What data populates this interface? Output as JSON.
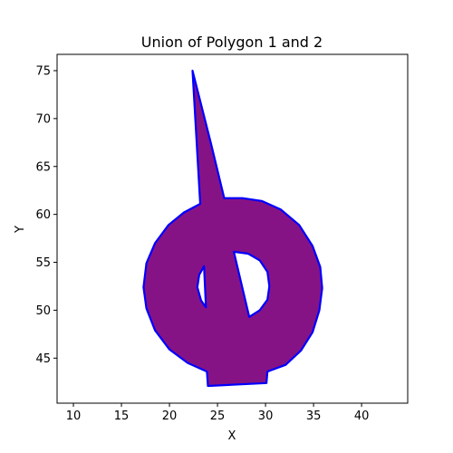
{
  "chart_data": {
    "type": "area",
    "title": "Union of Polygon 1 and 2",
    "xlabel": "X",
    "ylabel": "Y",
    "xlim": [
      8.3,
      44.8
    ],
    "ylim": [
      40.3,
      76.7
    ],
    "xticks": [
      10,
      15,
      20,
      25,
      30,
      35,
      40
    ],
    "yticks": [
      45,
      50,
      55,
      60,
      65,
      70,
      75
    ],
    "grid": false,
    "fill_color": "#861386",
    "edge_color": "#0000ff",
    "outer_boundary": [
      [
        22.4,
        75.0
      ],
      [
        24.3,
        67.5
      ],
      [
        25.7,
        61.7
      ],
      [
        27.6,
        61.7
      ],
      [
        29.6,
        61.4
      ],
      [
        31.6,
        60.5
      ],
      [
        33.5,
        58.9
      ],
      [
        34.9,
        56.7
      ],
      [
        35.7,
        54.5
      ],
      [
        35.9,
        52.3
      ],
      [
        35.6,
        50.0
      ],
      [
        34.9,
        47.7
      ],
      [
        33.7,
        45.8
      ],
      [
        32.1,
        44.3
      ],
      [
        30.2,
        43.6
      ],
      [
        30.1,
        42.4
      ],
      [
        24.0,
        42.1
      ],
      [
        23.9,
        43.6
      ],
      [
        21.9,
        44.5
      ],
      [
        20.0,
        45.9
      ],
      [
        18.5,
        47.9
      ],
      [
        17.6,
        50.2
      ],
      [
        17.3,
        52.4
      ],
      [
        17.6,
        54.9
      ],
      [
        18.5,
        57.0
      ],
      [
        19.9,
        58.9
      ],
      [
        21.5,
        60.2
      ],
      [
        23.2,
        61.1
      ],
      [
        22.4,
        75.0
      ]
    ],
    "holes": [
      [
        [
          26.7,
          56.1
        ],
        [
          28.2,
          55.9
        ],
        [
          29.4,
          55.2
        ],
        [
          30.2,
          54.0
        ],
        [
          30.4,
          52.5
        ],
        [
          30.2,
          51.1
        ],
        [
          29.4,
          50.0
        ],
        [
          28.3,
          49.3
        ],
        [
          26.7,
          56.1
        ]
      ],
      [
        [
          23.6,
          54.6
        ],
        [
          23.8,
          50.3
        ],
        [
          23.3,
          51.0
        ],
        [
          22.9,
          52.4
        ],
        [
          23.1,
          53.7
        ],
        [
          23.6,
          54.6
        ]
      ]
    ]
  }
}
